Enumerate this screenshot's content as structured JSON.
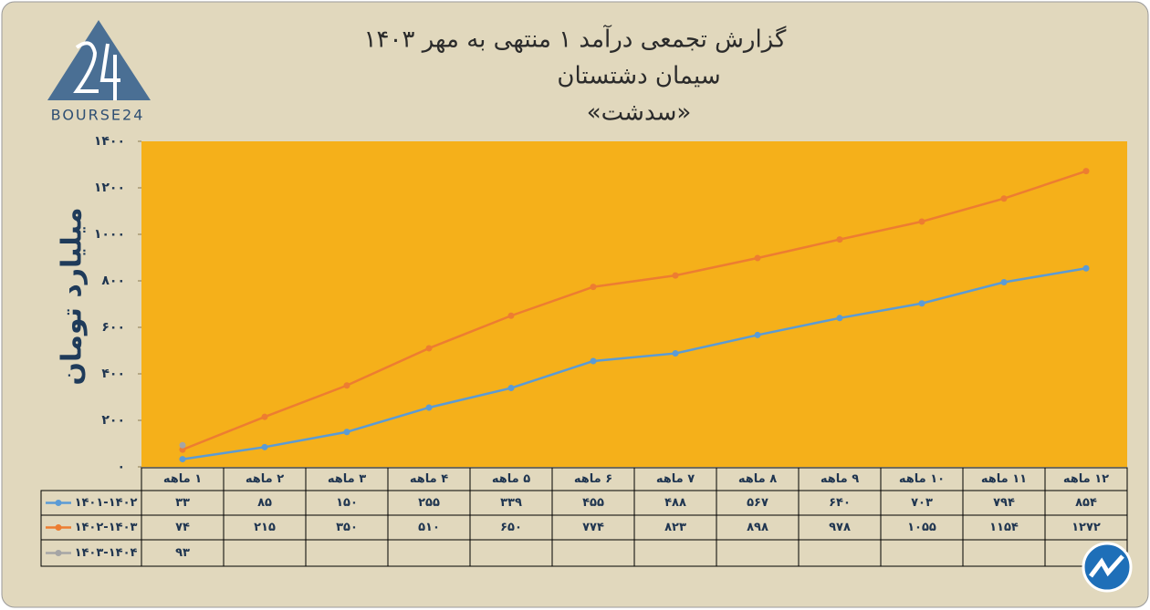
{
  "logo": "BOURSE24",
  "chart_data": {
    "type": "line",
    "title": "گزارش تجمعی درآمد ۱ منتهی به مهر ۱۴۰۳",
    "subtitle": "سیمان دشتستان",
    "subtitle2": "«سدشت»",
    "y_label": "میلیارد تومان",
    "categories": [
      "۱ ماهه",
      "۲ ماهه",
      "۳ ماهه",
      "۴ ماهه",
      "۵ ماهه",
      "۶ ماهه",
      "۷ ماهه",
      "۸ ماهه",
      "۹ ماهه",
      "۱۰ ماهه",
      "۱۱ ماهه",
      "۱۲ ماهه"
    ],
    "series": [
      {
        "name": "۱۴۰۱-۱۴۰۲",
        "color": "#5b9bd5",
        "values": [
          33,
          85,
          150,
          255,
          339,
          455,
          488,
          567,
          640,
          703,
          794,
          854
        ],
        "value_labels": [
          "۳۳",
          "۸۵",
          "۱۵۰",
          "۲۵۵",
          "۳۳۹",
          "۴۵۵",
          "۴۸۸",
          "۵۶۷",
          "۶۴۰",
          "۷۰۳",
          "۷۹۴",
          "۸۵۴"
        ]
      },
      {
        "name": "۱۴۰۲-۱۴۰۳",
        "color": "#ed7d31",
        "values": [
          74,
          215,
          350,
          510,
          650,
          774,
          823,
          898,
          978,
          1055,
          1154,
          1272
        ],
        "value_labels": [
          "۷۴",
          "۲۱۵",
          "۳۵۰",
          "۵۱۰",
          "۶۵۰",
          "۷۷۴",
          "۸۲۳",
          "۸۹۸",
          "۹۷۸",
          "۱۰۵۵",
          "۱۱۵۴",
          "۱۲۷۲"
        ]
      },
      {
        "name": "۱۴۰۳-۱۴۰۴",
        "color": "#a5a5a5",
        "values": [
          93,
          null,
          null,
          null,
          null,
          null,
          null,
          null,
          null,
          null,
          null,
          null
        ],
        "value_labels": [
          "۹۳",
          null,
          null,
          null,
          null,
          null,
          null,
          null,
          null,
          null,
          null,
          null
        ]
      }
    ],
    "ylim": [
      0,
      1400
    ],
    "yticks": [
      {
        "value": 0,
        "label": "۰"
      },
      {
        "value": 200,
        "label": "۲۰۰"
      },
      {
        "value": 400,
        "label": "۴۰۰"
      },
      {
        "value": 600,
        "label": "۶۰۰"
      },
      {
        "value": 800,
        "label": "۸۰۰"
      },
      {
        "value": 1000,
        "label": "۱۰۰۰"
      },
      {
        "value": 1200,
        "label": "۱۲۰۰"
      },
      {
        "value": 1400,
        "label": "۱۴۰۰"
      }
    ],
    "plot_color": "#f5b01a"
  }
}
